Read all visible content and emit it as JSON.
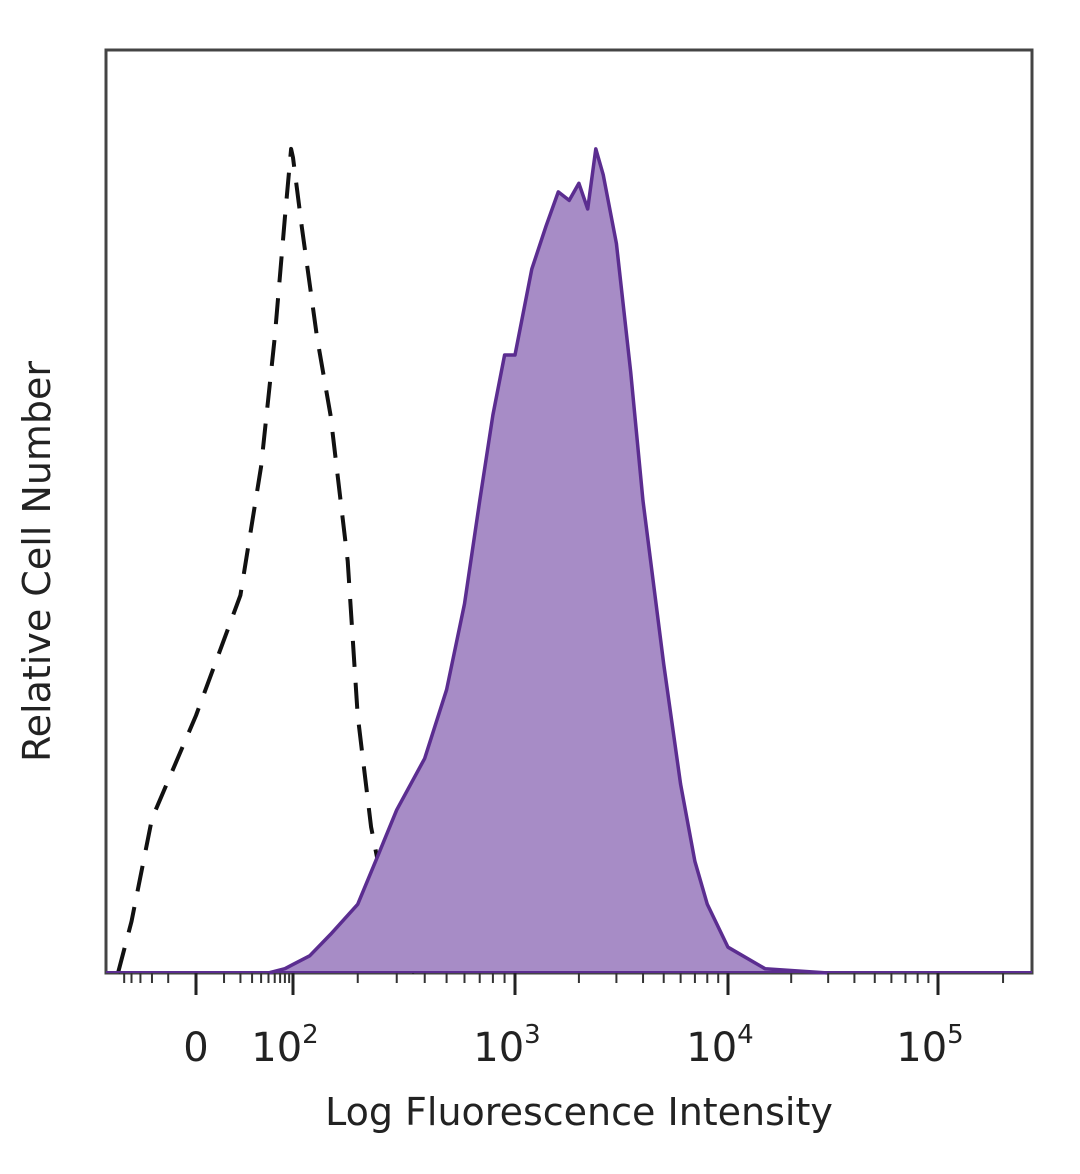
{
  "chart_data": {
    "type": "area",
    "xlabel": "Log Fluorescence Intensity",
    "ylabel": "Relative Cell Number",
    "x_scale": "biexponential (logicle)",
    "xlim": [
      -60,
      250000
    ],
    "ylim": [
      0,
      1.0
    ],
    "x_tick_labels": [
      {
        "value": 0,
        "base": "0",
        "exp": ""
      },
      {
        "value": 100,
        "base": "10",
        "exp": "2"
      },
      {
        "value": 1000,
        "base": "10",
        "exp": "3"
      },
      {
        "value": 10000,
        "base": "10",
        "exp": "4"
      },
      {
        "value": 100000,
        "base": "10",
        "exp": "5"
      }
    ],
    "grid": false,
    "legend": "none",
    "series": [
      {
        "style": "dashed",
        "color": "#111111",
        "fill": "none",
        "x": [
          -60,
          -40,
          -20,
          0,
          20,
          40,
          60,
          80,
          95,
          100,
          110,
          130,
          150,
          180,
          200,
          230,
          260,
          300,
          360
        ],
        "y": [
          0.0,
          0.06,
          0.18,
          0.3,
          0.44,
          0.59,
          0.74,
          0.88,
          0.96,
          0.95,
          0.87,
          0.74,
          0.65,
          0.48,
          0.3,
          0.17,
          0.1,
          0.04,
          0.0
        ]
      },
      {
        "style": "solid",
        "color": "#5b2d90",
        "fill": "#a78cc6",
        "x": [
          50,
          80,
          100,
          120,
          150,
          200,
          250,
          300,
          400,
          500,
          600,
          700,
          800,
          900,
          1000,
          1200,
          1400,
          1600,
          1800,
          2000,
          2200,
          2400,
          2600,
          3000,
          3500,
          4000,
          5000,
          6000,
          7000,
          8000,
          10000,
          15000,
          30000
        ],
        "y": [
          0.0,
          0.005,
          0.01,
          0.02,
          0.045,
          0.08,
          0.14,
          0.19,
          0.25,
          0.33,
          0.43,
          0.55,
          0.65,
          0.72,
          0.72,
          0.82,
          0.87,
          0.91,
          0.9,
          0.92,
          0.89,
          0.96,
          0.93,
          0.85,
          0.7,
          0.55,
          0.36,
          0.22,
          0.13,
          0.08,
          0.03,
          0.005,
          0.0
        ]
      }
    ]
  }
}
